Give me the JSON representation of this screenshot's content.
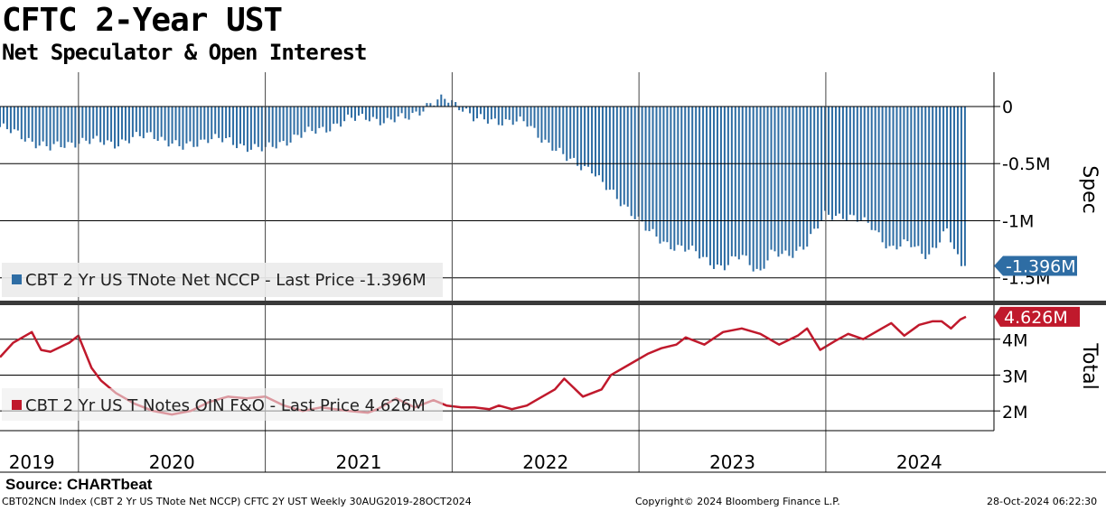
{
  "header": {
    "title": "CFTC 2-Year UST",
    "subtitle": "Net Speculator & Open Interest"
  },
  "footer": {
    "source": "Source: CHARTbeat",
    "index_info": "CBT02NCN Index (CBT 2 Yr US TNote Net NCCP) CFTC 2Y UST  Weekly 30AUG2019-28OCT2024",
    "copyright": "Copyright© 2024 Bloomberg Finance L.P.",
    "timestamp": "28-Oct-2024 06:22:30"
  },
  "colors": {
    "spec_bar": "#2e6da4",
    "total_line": "#c0192c",
    "gridline": "#000000",
    "separator": "#3a3a3a",
    "legend_bg": "#ececec"
  },
  "chart_data": [
    {
      "type": "bar",
      "name": "spec",
      "title": "CFTC 2-Year UST",
      "ylabel": "Spec",
      "y_unit": "M",
      "ylim": [
        -1.7,
        0.3
      ],
      "yticks": [
        0,
        -0.5,
        -1,
        -1.5
      ],
      "ytick_labels": [
        "0",
        "-0.5M",
        "-1M",
        "-1.5M"
      ],
      "legend": "CBT 2 Yr US TNote Net NCCP - Last Price -1.396M",
      "last_value_label": "-1.396M",
      "last_value": -1.396,
      "x_start": 2019.58,
      "x_end": 2024.75,
      "x_step": 0.0192,
      "keypoints_x": [
        2019.58,
        2019.75,
        2019.85,
        2020.0,
        2020.2,
        2020.4,
        2020.55,
        2020.7,
        2020.85,
        2021.0,
        2021.15,
        2021.3,
        2021.45,
        2021.55,
        2021.65,
        2021.85,
        2021.97,
        2022.05,
        2022.12,
        2022.25,
        2022.4,
        2022.5,
        2022.6,
        2022.75,
        2022.8,
        2022.95,
        2023.05,
        2023.15,
        2023.3,
        2023.45,
        2023.55,
        2023.65,
        2023.7,
        2023.8,
        2023.9,
        2024.0,
        2024.1,
        2024.25,
        2024.35,
        2024.45,
        2024.55,
        2024.65,
        2024.72,
        2024.75
      ],
      "keypoints_y": [
        -0.18,
        -0.3,
        -0.37,
        -0.3,
        -0.32,
        -0.24,
        -0.37,
        -0.27,
        -0.33,
        -0.38,
        -0.27,
        -0.2,
        -0.12,
        -0.08,
        -0.15,
        -0.02,
        0.08,
        0.0,
        -0.12,
        -0.12,
        -0.15,
        -0.3,
        -0.45,
        -0.55,
        -0.68,
        -0.9,
        -1.1,
        -1.2,
        -1.28,
        -1.42,
        -1.3,
        -1.45,
        -1.3,
        -1.3,
        -1.2,
        -0.95,
        -0.95,
        -1.05,
        -1.25,
        -1.2,
        -1.3,
        -1.1,
        -1.38,
        -1.396
      ]
    },
    {
      "type": "line",
      "name": "total",
      "ylabel": "Total",
      "y_unit": "M",
      "ylim": [
        1.45,
        4.95
      ],
      "yticks": [
        2,
        3,
        4
      ],
      "ytick_labels": [
        "2M",
        "3M",
        "4M"
      ],
      "legend": "CBT 2 Yr US T Notes OIN F&O - Last Price 4.626M",
      "last_value_label": "4.626M",
      "last_value": 4.626,
      "x": [
        2019.58,
        2019.65,
        2019.75,
        2019.8,
        2019.85,
        2019.95,
        2020.0,
        2020.07,
        2020.12,
        2020.2,
        2020.3,
        2020.4,
        2020.5,
        2020.6,
        2020.7,
        2020.8,
        2020.9,
        2021.0,
        2021.1,
        2021.2,
        2021.3,
        2021.45,
        2021.55,
        2021.6,
        2021.7,
        2021.8,
        2021.9,
        2021.97,
        2022.05,
        2022.12,
        2022.2,
        2022.25,
        2022.32,
        2022.4,
        2022.45,
        2022.55,
        2022.6,
        2022.7,
        2022.8,
        2022.85,
        2022.95,
        2023.05,
        2023.12,
        2023.2,
        2023.25,
        2023.35,
        2023.45,
        2023.55,
        2023.65,
        2023.75,
        2023.85,
        2023.9,
        2023.97,
        2024.05,
        2024.12,
        2024.2,
        2024.3,
        2024.35,
        2024.42,
        2024.5,
        2024.57,
        2024.62,
        2024.67,
        2024.72,
        2024.75
      ],
      "y": [
        3.5,
        3.9,
        4.2,
        3.7,
        3.65,
        3.9,
        4.1,
        3.2,
        2.85,
        2.5,
        2.2,
        2.0,
        1.9,
        2.0,
        2.25,
        2.4,
        2.35,
        2.4,
        2.15,
        2.0,
        2.1,
        2.0,
        1.95,
        2.05,
        2.35,
        2.1,
        2.3,
        2.15,
        2.1,
        2.1,
        2.05,
        2.15,
        2.05,
        2.15,
        2.3,
        2.6,
        2.9,
        2.4,
        2.6,
        3.0,
        3.3,
        3.6,
        3.75,
        3.85,
        4.05,
        3.85,
        4.2,
        4.3,
        4.15,
        3.85,
        4.1,
        4.3,
        3.7,
        3.95,
        4.15,
        4.0,
        4.3,
        4.45,
        4.1,
        4.4,
        4.5,
        4.5,
        4.3,
        4.55,
        4.626
      ]
    }
  ],
  "x_axis": {
    "year_labels": [
      "2019",
      "2020",
      "2021",
      "2022",
      "2023",
      "2024"
    ],
    "year_label_x": [
      2019.75,
      2020.5,
      2021.5,
      2022.5,
      2023.5,
      2024.5
    ],
    "year_boundaries": [
      2020.0,
      2021.0,
      2022.0,
      2023.0,
      2024.0
    ]
  }
}
